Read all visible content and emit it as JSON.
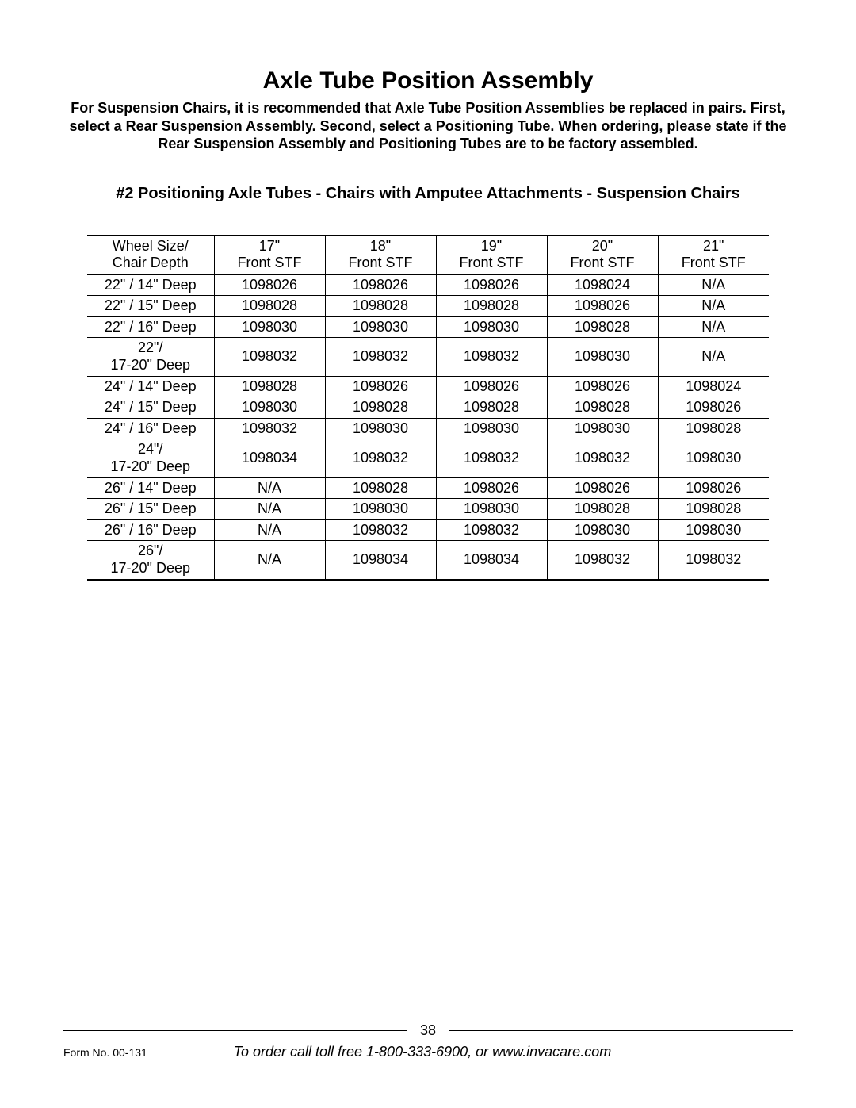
{
  "title": "Axle Tube Position Assembly",
  "intro": "For Suspension Chairs, it is recommended that Axle Tube Position Assemblies be replaced in pairs. First, select a Rear Suspension Assembly. Second, select a Positioning Tube.\nWhen ordering, please state if the Rear Suspension Assembly and Positioning Tubes are to be factory assembled.",
  "subtitle": "#2  Positioning Axle Tubes - Chairs with Amputee Attachments - Suspension Chairs",
  "table": {
    "header_row1": [
      "Wheel Size/",
      "17\"",
      "18\"",
      "19\"",
      "20\"",
      "21\""
    ],
    "header_row2": [
      "Chair Depth",
      "Front STF",
      "Front STF",
      "Front STF",
      "Front STF",
      "Front STF"
    ],
    "rows": [
      [
        "22\" / 14\" Deep",
        "1098026",
        "1098026",
        "1098026",
        "1098024",
        "N/A"
      ],
      [
        "22\" / 15\" Deep",
        "1098028",
        "1098028",
        "1098028",
        "1098026",
        "N/A"
      ],
      [
        "22\" / 16\" Deep",
        "1098030",
        "1098030",
        "1098030",
        "1098028",
        "N/A"
      ],
      [
        "22\"/\n17-20\" Deep",
        "1098032",
        "1098032",
        "1098032",
        "1098030",
        "N/A"
      ],
      [
        "24\" / 14\" Deep",
        "1098028",
        "1098026",
        "1098026",
        "1098026",
        "1098024"
      ],
      [
        "24\" / 15\" Deep",
        "1098030",
        "1098028",
        "1098028",
        "1098028",
        "1098026"
      ],
      [
        "24\" / 16\" Deep",
        "1098032",
        "1098030",
        "1098030",
        "1098030",
        "1098028"
      ],
      [
        "24\"/\n17-20\" Deep",
        "1098034",
        "1098032",
        "1098032",
        "1098032",
        "1098030"
      ],
      [
        "26\" / 14\" Deep",
        "N/A",
        "1098028",
        "1098026",
        "1098026",
        "1098026"
      ],
      [
        "26\" / 15\" Deep",
        "N/A",
        "1098030",
        "1098030",
        "1098028",
        "1098028"
      ],
      [
        "26\" / 16\" Deep",
        "N/A",
        "1098032",
        "1098032",
        "1098030",
        "1098030"
      ],
      [
        "26\"/\n17-20\" Deep",
        "N/A",
        "1098034",
        "1098034",
        "1098032",
        "1098032"
      ]
    ],
    "col_widths": [
      "160px",
      "140px",
      "140px",
      "140px",
      "140px",
      "140px"
    ]
  },
  "footer": {
    "page_number": "38",
    "form_no": "Form No.  00-131",
    "order_line": "To order call toll free 1-800-333-6900, or www.invacare.com"
  },
  "colors": {
    "text": "#000000",
    "background": "#ffffff",
    "border": "#000000"
  }
}
